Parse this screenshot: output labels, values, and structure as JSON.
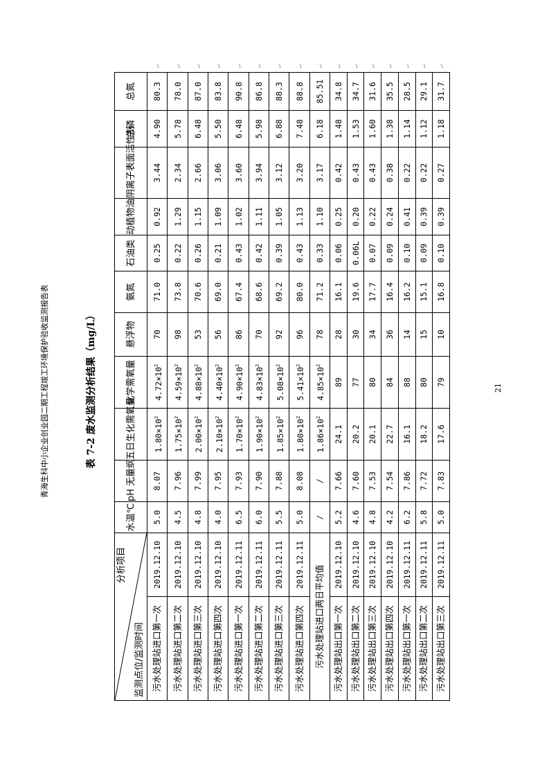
{
  "doc_header": "青海生科中小企业创业园二期工程竣工环境保护验收监测报告表",
  "table_title": "表 7-2  废水监测分析结果（mg/L）",
  "page_number": "21",
  "table": {
    "corner_top": "分析项目",
    "corner_bottom": "监测点位/监测时间",
    "columns": [
      "水温℃",
      "pH 无量纲",
      "五日生化需氧量",
      "化学需氧量",
      "悬浮物",
      "氨氮",
      "石油类",
      "动植物油",
      "阴离子表面活性剂",
      "总磷",
      "总氮"
    ],
    "rows": [
      {
        "location": "污水处理站进口第一次",
        "date": "2019.12.10",
        "values": [
          "5.0",
          "8.07",
          "1.80×10²",
          "4.72×10²",
          "70",
          "71.0",
          "0.25",
          "0.92",
          "3.44",
          "4.90",
          "80.3"
        ]
      },
      {
        "location": "污水处理站进口第二次",
        "date": "2019.12.10",
        "values": [
          "4.5",
          "7.96",
          "1.75×10²",
          "4.59×10²",
          "98",
          "73.8",
          "0.22",
          "1.29",
          "2.34",
          "5.78",
          "78.0"
        ]
      },
      {
        "location": "污水处理站进口第三次",
        "date": "2019.12.10",
        "values": [
          "4.8",
          "7.99",
          "2.00×10²",
          "4.88×10²",
          "53",
          "70.6",
          "0.26",
          "1.15",
          "2.66",
          "6.48",
          "87.0"
        ]
      },
      {
        "location": "污水处理站进口第四次",
        "date": "2019.12.10",
        "values": [
          "4.0",
          "7.95",
          "2.10×10²",
          "4.40×10²",
          "56",
          "69.0",
          "0.21",
          "1.09",
          "3.06",
          "5.50",
          "83.8"
        ]
      },
      {
        "location": "污水处理站进口第一次",
        "date": "2019.12.11",
        "values": [
          "6.5",
          "7.93",
          "1.70×10²",
          "4.90×10²",
          "86",
          "67.4",
          "0.43",
          "1.02",
          "3.60",
          "6.48",
          "90.8"
        ]
      },
      {
        "location": "污水处理站进口第二次",
        "date": "2019.12.11",
        "values": [
          "6.0",
          "7.90",
          "1.90×10²",
          "4.83×10²",
          "70",
          "68.6",
          "0.42",
          "1.11",
          "3.94",
          "5.98",
          "86.8"
        ]
      },
      {
        "location": "污水处理站进口第三次",
        "date": "2019.12.11",
        "values": [
          "5.5",
          "7.88",
          "1.85×10²",
          "5.08×10²",
          "92",
          "69.2",
          "0.39",
          "1.05",
          "3.12",
          "6.88",
          "88.3"
        ]
      },
      {
        "location": "污水处理站进口第四次",
        "date": "2019.12.11",
        "values": [
          "5.0",
          "8.08",
          "1.80×10²",
          "5.41×10²",
          "96",
          "80.0",
          "0.43",
          "1.13",
          "3.20",
          "7.48",
          "88.8"
        ]
      },
      {
        "location": "污水处理站进口两日平均值",
        "date": "",
        "values": [
          "/",
          "/",
          "1.86×10²",
          "4.85×10²",
          "78",
          "71.2",
          "0.33",
          "1.10",
          "3.17",
          "6.18",
          "85.51"
        ]
      },
      {
        "location": "污水处理站出口第一次",
        "date": "2019.12.10",
        "values": [
          "5.2",
          "7.66",
          "24.1",
          "89",
          "28",
          "16.1",
          "0.06",
          "0.25",
          "0.42",
          "1.48",
          "34.8"
        ]
      },
      {
        "location": "污水处理站出口第二次",
        "date": "2019.12.10",
        "values": [
          "4.6",
          "7.60",
          "20.2",
          "77",
          "30",
          "19.6",
          "0.06L",
          "0.20",
          "0.43",
          "1.53",
          "34.7"
        ]
      },
      {
        "location": "污水处理站出口第三次",
        "date": "2019.12.10",
        "values": [
          "4.8",
          "7.53",
          "20.1",
          "80",
          "34",
          "17.7",
          "0.07",
          "0.22",
          "0.43",
          "1.60",
          "31.6"
        ]
      },
      {
        "location": "污水处理站出口第四次",
        "date": "2019.12.10",
        "values": [
          "4.2",
          "7.54",
          "22.7",
          "84",
          "36",
          "16.4",
          "0.09",
          "0.24",
          "0.38",
          "1.38",
          "35.5"
        ]
      },
      {
        "location": "污水处理站出口第一次",
        "date": "2019.12.11",
        "values": [
          "6.2",
          "7.86",
          "16.1",
          "88",
          "14",
          "16.2",
          "0.10",
          "0.41",
          "0.22",
          "1.14",
          "28.5"
        ]
      },
      {
        "location": "污水处理站出口第二次",
        "date": "2019.12.11",
        "values": [
          "5.8",
          "7.72",
          "18.2",
          "80",
          "15",
          "15.1",
          "0.09",
          "0.39",
          "0.22",
          "1.12",
          "29.1"
        ]
      },
      {
        "location": "污水处理站出口第三次",
        "date": "2019.12.11",
        "values": [
          "5.0",
          "7.83",
          "17.6",
          "79",
          "10",
          "16.8",
          "0.10",
          "0.39",
          "0.27",
          "1.18",
          "31.7"
        ]
      }
    ]
  }
}
